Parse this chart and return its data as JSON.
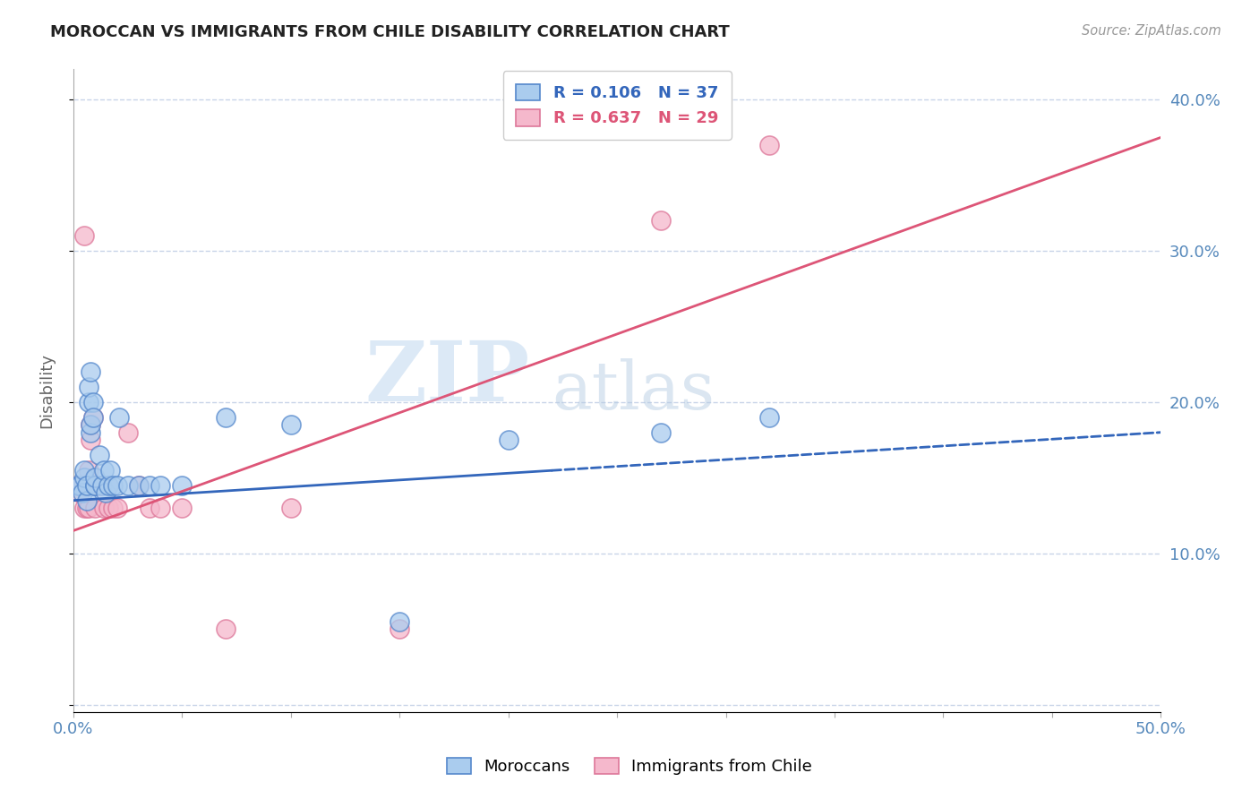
{
  "title": "MOROCCAN VS IMMIGRANTS FROM CHILE DISABILITY CORRELATION CHART",
  "source": "Source: ZipAtlas.com",
  "ylabel": "Disability",
  "xlim": [
    0.0,
    0.5
  ],
  "ylim": [
    -0.005,
    0.42
  ],
  "xticks": [
    0.0,
    0.05,
    0.1,
    0.15,
    0.2,
    0.25,
    0.3,
    0.35,
    0.4,
    0.45,
    0.5
  ],
  "yticks": [
    0.0,
    0.1,
    0.2,
    0.3,
    0.4
  ],
  "legend1_label": "R = 0.106   N = 37",
  "legend2_label": "R = 0.637   N = 29",
  "series1_name": "Moroccans",
  "series2_name": "Immigrants from Chile",
  "watermark_zip": "ZIP",
  "watermark_atlas": "atlas",
  "moroccan_x": [
    0.002,
    0.003,
    0.004,
    0.005,
    0.005,
    0.006,
    0.006,
    0.007,
    0.007,
    0.008,
    0.008,
    0.008,
    0.009,
    0.009,
    0.01,
    0.01,
    0.01,
    0.012,
    0.013,
    0.014,
    0.015,
    0.016,
    0.017,
    0.018,
    0.02,
    0.021,
    0.025,
    0.03,
    0.035,
    0.04,
    0.05,
    0.07,
    0.1,
    0.15,
    0.2,
    0.27,
    0.32
  ],
  "moroccan_y": [
    0.145,
    0.145,
    0.14,
    0.15,
    0.155,
    0.135,
    0.145,
    0.2,
    0.21,
    0.22,
    0.18,
    0.185,
    0.2,
    0.19,
    0.145,
    0.145,
    0.15,
    0.165,
    0.145,
    0.155,
    0.14,
    0.145,
    0.155,
    0.145,
    0.145,
    0.19,
    0.145,
    0.145,
    0.145,
    0.145,
    0.145,
    0.19,
    0.185,
    0.055,
    0.175,
    0.18,
    0.19
  ],
  "chile_x": [
    0.002,
    0.003,
    0.004,
    0.005,
    0.005,
    0.006,
    0.006,
    0.007,
    0.007,
    0.008,
    0.008,
    0.009,
    0.009,
    0.01,
    0.012,
    0.014,
    0.016,
    0.018,
    0.02,
    0.025,
    0.03,
    0.035,
    0.04,
    0.05,
    0.07,
    0.1,
    0.15,
    0.27,
    0.32
  ],
  "chile_y": [
    0.145,
    0.14,
    0.145,
    0.13,
    0.31,
    0.13,
    0.145,
    0.13,
    0.155,
    0.175,
    0.185,
    0.19,
    0.145,
    0.13,
    0.145,
    0.13,
    0.13,
    0.13,
    0.13,
    0.18,
    0.145,
    0.13,
    0.13,
    0.13,
    0.05,
    0.13,
    0.05,
    0.32,
    0.37
  ],
  "background_color": "#ffffff",
  "grid_color": "#c8d4e8",
  "axis_label_color": "#666666",
  "tick_label_color": "#5588bb",
  "line_blue_color": "#3366bb",
  "line_pink_color": "#dd5577",
  "scatter_blue_face": "#aaccee",
  "scatter_blue_edge": "#5588cc",
  "scatter_pink_face": "#f5b8cc",
  "scatter_pink_edge": "#dd7799",
  "blue_line_solid_end": 0.22,
  "blue_line_x0": 0.0,
  "blue_line_y0": 0.135,
  "blue_line_x1": 0.5,
  "blue_line_y1": 0.18,
  "pink_line_x0": 0.0,
  "pink_line_y0": 0.115,
  "pink_line_x1": 0.5,
  "pink_line_y1": 0.375
}
